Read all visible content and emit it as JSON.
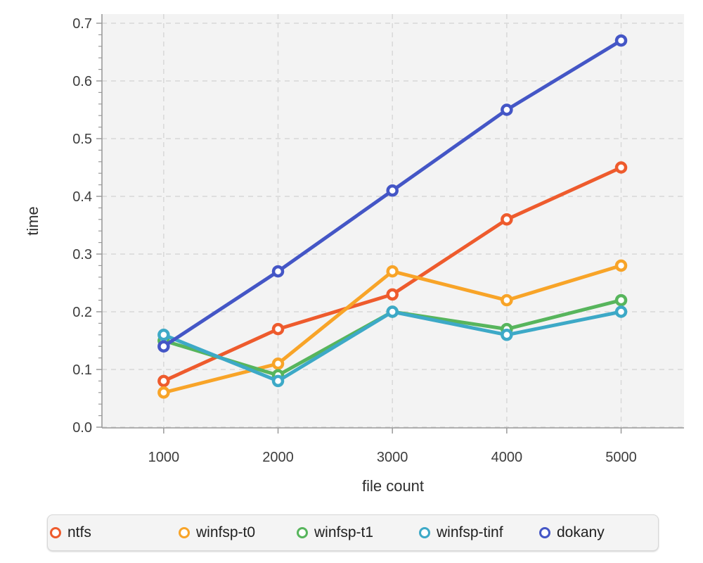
{
  "chart_data": {
    "type": "line",
    "title": "",
    "xlabel": "file count",
    "ylabel": "time",
    "x": [
      1000,
      2000,
      3000,
      4000,
      5000
    ],
    "series": [
      {
        "name": "ntfs",
        "color": "#ee5b2d",
        "values": [
          0.08,
          0.17,
          0.23,
          0.36,
          0.45
        ]
      },
      {
        "name": "winfsp-t0",
        "color": "#f8a428",
        "values": [
          0.06,
          0.11,
          0.27,
          0.22,
          0.28
        ]
      },
      {
        "name": "winfsp-t1",
        "color": "#57b55c",
        "values": [
          0.15,
          0.09,
          0.2,
          0.17,
          0.22
        ]
      },
      {
        "name": "winfsp-tinf",
        "color": "#3da9c7",
        "values": [
          0.16,
          0.08,
          0.2,
          0.16,
          0.2
        ]
      },
      {
        "name": "dokany",
        "color": "#4456c6",
        "values": [
          0.14,
          0.27,
          0.41,
          0.55,
          0.67
        ]
      }
    ],
    "xlim": [
      460,
      5550
    ],
    "ylim": [
      0,
      0.7
    ],
    "x_ticks": [
      1000,
      2000,
      3000,
      4000,
      5000
    ],
    "y_ticks": [
      0.0,
      0.1,
      0.2,
      0.3,
      0.4,
      0.5,
      0.6,
      0.7
    ],
    "y_tick_decimals": 1,
    "y_minor_step": 0.02,
    "grid": true,
    "grid_style": "dashed",
    "legend_position": "bottom",
    "legend_marker": "open-circle",
    "legend_item_offsets": [
      3,
      186,
      354,
      528,
      699
    ]
  },
  "style": {
    "plot_bg": "#f3f3f3",
    "grid_color": "#d8d8d8",
    "spine_color": "#9a9a9a",
    "tick_color": "#9a9a9a",
    "tick_label_color": "#3d3d3d",
    "axis_title_color": "#2e2e2e",
    "legend_bg": "#f4f4f4",
    "legend_border": "#d7d7d7",
    "legend_text": "#1f1f1f",
    "line_width": 5,
    "marker_radius": 6.5,
    "marker_stroke": 4.5
  }
}
